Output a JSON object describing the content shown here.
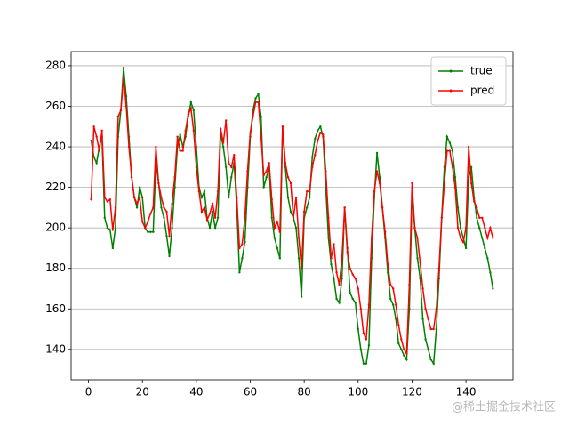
{
  "chart_data": {
    "type": "line",
    "x": [
      1,
      2,
      3,
      4,
      5,
      6,
      7,
      8,
      9,
      10,
      11,
      12,
      13,
      14,
      15,
      16,
      17,
      18,
      19,
      20,
      21,
      22,
      23,
      24,
      25,
      26,
      27,
      28,
      29,
      30,
      31,
      32,
      33,
      34,
      35,
      36,
      37,
      38,
      39,
      40,
      41,
      42,
      43,
      44,
      45,
      46,
      47,
      48,
      49,
      50,
      51,
      52,
      53,
      54,
      55,
      56,
      57,
      58,
      59,
      60,
      61,
      62,
      63,
      64,
      65,
      66,
      67,
      68,
      69,
      70,
      71,
      72,
      73,
      74,
      75,
      76,
      77,
      78,
      79,
      80,
      81,
      82,
      83,
      84,
      85,
      86,
      87,
      88,
      89,
      90,
      91,
      92,
      93,
      94,
      95,
      96,
      97,
      98,
      99,
      100,
      101,
      102,
      103,
      104,
      105,
      106,
      107,
      108,
      109,
      110,
      111,
      112,
      113,
      114,
      115,
      116,
      117,
      118,
      119,
      120,
      121,
      122,
      123,
      124,
      125,
      126,
      127,
      128,
      129,
      130,
      131,
      132,
      133,
      134,
      135,
      136,
      137,
      138,
      139,
      140,
      141,
      142,
      143,
      144,
      145,
      146,
      147,
      148,
      149,
      150
    ],
    "series": [
      {
        "name": "true",
        "color": "green",
        "values": [
          243,
          235,
          232,
          240,
          245,
          205,
          200,
          199,
          190,
          200,
          245,
          258,
          279,
          265,
          245,
          225,
          215,
          210,
          220,
          215,
          200,
          198,
          198,
          198,
          232,
          222,
          210,
          205,
          196,
          186,
          200,
          220,
          240,
          246,
          240,
          245,
          255,
          262,
          258,
          240,
          220,
          215,
          218,
          205,
          200,
          208,
          200,
          205,
          247,
          240,
          230,
          215,
          225,
          232,
          210,
          178,
          185,
          193,
          220,
          245,
          258,
          264,
          266,
          255,
          220,
          225,
          230,
          205,
          195,
          190,
          185,
          250,
          230,
          215,
          208,
          205,
          200,
          185,
          166,
          205,
          210,
          215,
          235,
          244,
          248,
          250,
          245,
          220,
          195,
          182,
          175,
          165,
          163,
          175,
          210,
          190,
          168,
          165,
          163,
          150,
          140,
          133,
          133,
          142,
          185,
          215,
          237,
          225,
          210,
          195,
          178,
          165,
          162,
          155,
          143,
          140,
          137,
          135,
          160,
          216,
          200,
          185,
          175,
          155,
          145,
          140,
          135,
          133,
          150,
          175,
          205,
          230,
          245,
          242,
          238,
          225,
          210,
          200,
          195,
          190,
          225,
          230,
          215,
          205,
          200,
          195,
          190,
          185,
          178,
          170
        ]
      },
      {
        "name": "pred",
        "color": "red",
        "values": [
          214,
          250,
          245,
          238,
          248,
          215,
          213,
          214,
          199,
          210,
          255,
          258,
          274,
          260,
          240,
          225,
          215,
          212,
          215,
          203,
          200,
          203,
          207,
          210,
          240,
          222,
          215,
          210,
          208,
          196,
          212,
          225,
          245,
          238,
          238,
          248,
          256,
          259,
          248,
          230,
          218,
          208,
          210,
          204,
          207,
          212,
          205,
          218,
          249,
          242,
          253,
          232,
          230,
          236,
          215,
          190,
          192,
          205,
          228,
          247,
          255,
          262,
          262,
          245,
          226,
          228,
          232,
          214,
          200,
          203,
          198,
          250,
          232,
          225,
          222,
          205,
          215,
          195,
          180,
          208,
          218,
          218,
          230,
          236,
          243,
          247,
          246,
          228,
          205,
          185,
          192,
          178,
          172,
          185,
          210,
          188,
          180,
          177,
          175,
          170,
          160,
          148,
          145,
          162,
          195,
          218,
          228,
          222,
          210,
          198,
          182,
          172,
          170,
          162,
          152,
          145,
          140,
          138,
          172,
          222,
          200,
          195,
          183,
          170,
          160,
          155,
          150,
          150,
          160,
          180,
          205,
          222,
          238,
          238,
          230,
          220,
          200,
          195,
          193,
          200,
          240,
          222,
          213,
          210,
          205,
          205,
          200,
          195,
          200,
          195
        ]
      }
    ],
    "xlim": [
      -6.45,
      157.45
    ],
    "xticks": [
      0,
      20,
      40,
      60,
      80,
      100,
      120,
      140
    ],
    "ylim": [
      125,
      287
    ],
    "yticks": [
      140,
      160,
      180,
      200,
      220,
      240,
      260,
      280
    ],
    "grid": "y",
    "legend": "upper right",
    "watermark": "@稀土掘金技术社区"
  }
}
